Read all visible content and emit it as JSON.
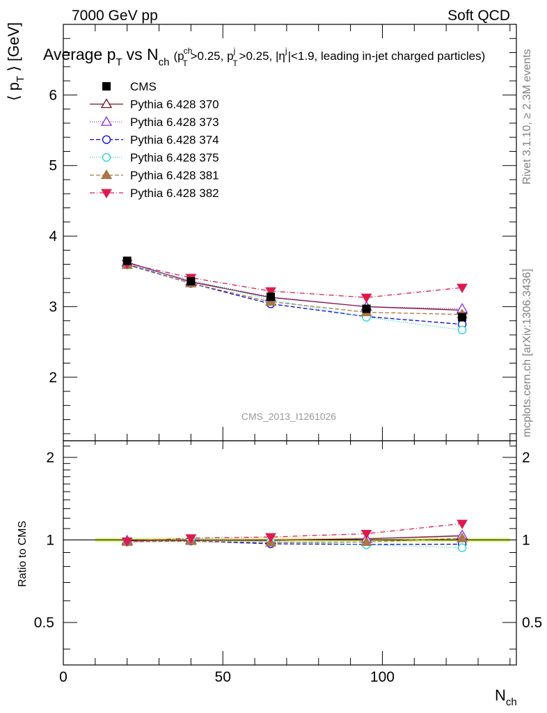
{
  "header": {
    "energy_label": "7000 GeV pp",
    "category_label": "Soft QCD"
  },
  "side_labels": {
    "rivet": "Rivet 3.1.10, ≥ 2.3M events",
    "mcplots": "mcplots.cern.ch [arXiv:1306.3436]"
  },
  "watermark": "CMS_2013_I1261026",
  "colors": {
    "cms": "#000000",
    "p370": "#7a1020",
    "p373": "#8a2be2",
    "p374": "#0000dd",
    "p375": "#1ed6d0",
    "p381": "#a87848",
    "p382": "#dd1a50",
    "band": "#e6f590"
  },
  "chart_data": {
    "type": "line",
    "title": {
      "main": "Average p",
      "sub_T": "T",
      "vs": "vs N",
      "sub_ch": "ch",
      "cuts": "(p",
      "cut_sup_ch": "ch",
      "cut_T1": "T",
      "cut_a": ">0.25, p",
      "cut_sup_j": "j",
      "cut_T2": "T",
      "cut_b": ">0.25, |η",
      "cut_sup_j2": "j",
      "cut_c": "|<1.9, leading in-jet charged particles)"
    },
    "ylabel": {
      "pre": "⟨ p",
      "sub": "T",
      "post": " ⟩ [GeV]"
    },
    "xlabel": {
      "main": "N",
      "sub": "ch"
    },
    "ratio_ylabel": "Ratio to CMS",
    "xlim": [
      0,
      142
    ],
    "ylim": [
      1.1,
      7.0
    ],
    "ratio_ylim": [
      0.35,
      2.3
    ],
    "x_ticks": [
      "0",
      "50",
      "100"
    ],
    "y_ticks": [
      "2",
      "3",
      "4",
      "5",
      "6"
    ],
    "ratio_ticks": [
      "0.5",
      "1",
      "2"
    ],
    "x": [
      20,
      40,
      65,
      95,
      125
    ],
    "band_x": [
      10,
      140
    ],
    "band_halfwidth": 0.02,
    "series": [
      {
        "name": "CMS",
        "key": "cms",
        "marker": "square",
        "dash": "",
        "values": [
          3.65,
          3.36,
          3.14,
          2.97,
          2.85
        ],
        "ratio": [
          1.0,
          1.0,
          1.0,
          1.0,
          1.0
        ]
      },
      {
        "name": "Pythia 6.428 370",
        "key": "p370",
        "marker": "triangle-open",
        "dash": "",
        "values": [
          3.63,
          3.35,
          3.13,
          3.0,
          2.95
        ],
        "ratio": [
          0.995,
          0.997,
          0.997,
          1.01,
          1.035
        ]
      },
      {
        "name": "Pythia 6.428 373",
        "key": "p373",
        "marker": "triangle-open",
        "dash": "1,2",
        "values": [
          3.62,
          3.36,
          3.14,
          3.0,
          2.97
        ],
        "ratio": [
          0.992,
          1.0,
          1.0,
          1.01,
          1.04
        ]
      },
      {
        "name": "Pythia 6.428 374",
        "key": "p374",
        "marker": "circle-open",
        "dash": "6,3",
        "values": [
          3.6,
          3.33,
          3.04,
          2.86,
          2.75
        ],
        "ratio": [
          0.986,
          0.991,
          0.968,
          0.963,
          0.965
        ]
      },
      {
        "name": "Pythia 6.428 375",
        "key": "p375",
        "marker": "circle-open",
        "dash": "1,2",
        "values": [
          3.59,
          3.38,
          3.1,
          2.85,
          2.67
        ],
        "ratio": [
          0.984,
          1.006,
          0.987,
          0.96,
          0.937
        ]
      },
      {
        "name": "Pythia 6.428 381",
        "key": "p381",
        "marker": "triangle-filled",
        "dash": "6,3",
        "values": [
          3.59,
          3.33,
          3.07,
          2.92,
          2.89
        ],
        "ratio": [
          0.984,
          0.991,
          0.978,
          0.983,
          1.014
        ]
      },
      {
        "name": "Pythia 6.428 382",
        "key": "p382",
        "marker": "triangle-down-filled",
        "dash": "7,3,1,3",
        "values": [
          3.61,
          3.41,
          3.22,
          3.13,
          3.27
        ],
        "ratio": [
          0.989,
          1.015,
          1.025,
          1.054,
          1.147
        ]
      }
    ]
  }
}
